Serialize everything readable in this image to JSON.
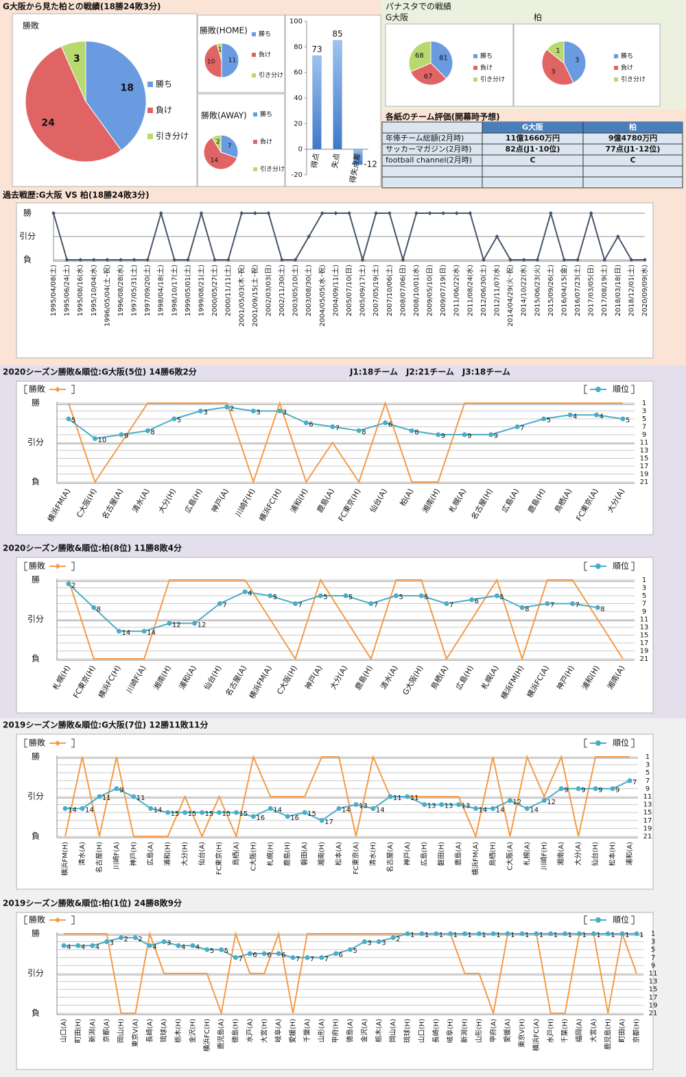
{
  "record_title": "G大阪から見た柏との戦績(18勝24敗3分)",
  "panasta_title": "パナスタでの戦績",
  "table": {
    "title": "各紙のチーム評価(開幕時予想)",
    "header": [
      "G大阪",
      "柏"
    ],
    "rows": [
      [
        "年俸チーム総額(2月時)",
        "11億1660万円",
        "9億4780万円"
      ],
      [
        "サッカーマガジン(2月時)",
        "82点(J1･10位)",
        "77点(J1･12位)"
      ],
      [
        "football channel(2月時)",
        "C",
        "C"
      ]
    ]
  },
  "chart_data": [
    {
      "type": "pie",
      "title": "勝敗",
      "categories": [
        "勝ち",
        "負け",
        "引き分け"
      ],
      "values": [
        18,
        24,
        3
      ],
      "colors": [
        "#6a9be0",
        "#e06464",
        "#b8d96e"
      ]
    },
    {
      "type": "pie",
      "title": "勝敗(HOME)",
      "categories": [
        "勝ち",
        "負け",
        "引き分け"
      ],
      "values": [
        11,
        10,
        1
      ],
      "colors": [
        "#6a9be0",
        "#e06464",
        "#b8d96e"
      ]
    },
    {
      "type": "pie",
      "title": "勝敗(AWAY)",
      "categories": [
        "勝ち",
        "負け",
        "引き分け"
      ],
      "values": [
        7,
        14,
        2
      ],
      "colors": [
        "#6a9be0",
        "#e06464",
        "#b8d96e"
      ]
    },
    {
      "type": "bar",
      "categories": [
        "得点",
        "失点",
        "得失点差"
      ],
      "values": [
        73,
        85,
        -12
      ],
      "color": "#5b8fd6",
      "ylim": [
        -20,
        100
      ],
      "yticks": [
        -20,
        0,
        20,
        40,
        60,
        80,
        100
      ]
    },
    {
      "type": "pie",
      "title": "G大阪",
      "categories": [
        "勝ち",
        "負け",
        "引き分け"
      ],
      "values": [
        81,
        67,
        68
      ],
      "colors": [
        "#6a9be0",
        "#e06464",
        "#b8d96e"
      ]
    },
    {
      "type": "pie",
      "title": "柏",
      "categories": [
        "勝ち",
        "負け",
        "引き分け"
      ],
      "values": [
        3,
        3,
        1
      ],
      "colors": [
        "#6a9be0",
        "#e06464",
        "#b8d96e"
      ]
    },
    {
      "type": "line",
      "title": "過去戦歴:G大阪 VS 柏(18勝24敗3分)",
      "categories": [
        "1995/04/08(土)",
        "1995/06/24(土)",
        "1995/08/16(水)",
        "1995/10/04(水)",
        "1996/05/04(土･祝)",
        "1996/08/28(水)",
        "1997/05/31(土)",
        "1997/09/20(土)",
        "1998/04/18(土)",
        "1998/10/17(土)",
        "1999/05/01(土)",
        "1999/08/21(土)",
        "2000/05/27(土)",
        "2000/11/11(土)",
        "2001/05/03(木･祝)",
        "2001/09/15(土･祝)",
        "2002/03/03(日)",
        "2002/11/30(土)",
        "2003/05/10(土)",
        "2003/08/30(土)",
        "2004/05/05(水･祝)",
        "2004/09/11(土)",
        "2005/07/10(日)",
        "2005/09/17(土)",
        "2007/05/19(土)",
        "2007/10/06(土)",
        "2008/07/06(日)",
        "2008/10/01(水)",
        "2009/05/10(日)",
        "2009/07/19(日)",
        "2011/06/22(水)",
        "2011/08/24(水)",
        "2012/06/30(土)",
        "2012/11/07(水)",
        "2014/04/29(火･祝)",
        "2014/10/22(水)",
        "2015/06/23(火)",
        "2015/09/26(土)",
        "2016/04/15(金)",
        "2016/07/23(土)",
        "2017/03/05(日)",
        "2017/08/19(土)",
        "2018/03/18(日)",
        "2018/12/01(土)",
        "2020/09/09(水)"
      ],
      "values": [
        2,
        0,
        0,
        0,
        0,
        0,
        0,
        0,
        2,
        0,
        0,
        2,
        0,
        0,
        2,
        2,
        2,
        0,
        0,
        1,
        2,
        2,
        2,
        0,
        2,
        2,
        0,
        2,
        2,
        2,
        2,
        2,
        0,
        1,
        0,
        0,
        0,
        2,
        0,
        0,
        2,
        0,
        1,
        0,
        0
      ],
      "color": "#44546a",
      "marker": "diamond",
      "ylim": [
        0,
        2
      ],
      "yticks": [
        {
          "value": 2,
          "label": "勝"
        },
        {
          "value": 1,
          "label": "引分"
        },
        {
          "value": 0,
          "label": "負"
        }
      ],
      "grid": true
    },
    {
      "type": "line",
      "title": "2020シーズン勝敗&順位:G大阪(5位) 14勝6敗2分",
      "annotation": "J1:18チーム　J2:21チーム　J3:18チーム",
      "categories": [
        "横浜FM(A)",
        "C大阪(H)",
        "名古屋(A)",
        "清水(A)",
        "大分(H)",
        "広島(H)",
        "神戸(A)",
        "川崎F(H)",
        "横浜FC(H)",
        "浦和(H)",
        "鹿島(A)",
        "FC東京(H)",
        "仙台(A)",
        "柏(A)",
        "湘南(H)",
        "札幌(A)",
        "名古屋(H)",
        "広島(A)",
        "鹿島(H)",
        "鳥栖(A)",
        "FC東京(A)",
        "大分(A)"
      ],
      "series": [
        {
          "name": "勝敗",
          "color": "#f59a45",
          "marker": "diamond",
          "values": [
            2,
            0,
            1,
            2,
            2,
            2,
            2,
            0,
            2,
            0,
            1,
            0,
            2,
            0,
            0,
            2,
            2,
            2,
            2,
            2,
            2,
            2
          ]
        },
        {
          "name": "順位",
          "color": "#4bacc6",
          "marker": "circle",
          "axis": "y2",
          "data_labels": true,
          "values": [
            5,
            10,
            9,
            8,
            5,
            3,
            2,
            3,
            3,
            6,
            7,
            8,
            6,
            8,
            9,
            9,
            9,
            7,
            5,
            4,
            4,
            5
          ]
        }
      ],
      "ylim": [
        0,
        2
      ],
      "yticks": [
        {
          "value": 2,
          "label": "勝"
        },
        {
          "value": 1,
          "label": "引分"
        },
        {
          "value": 0,
          "label": "負"
        }
      ],
      "y2lim": [
        1,
        21
      ],
      "y2_reversed": true,
      "y2ticks": [
        1,
        3,
        5,
        7,
        9,
        11,
        13,
        15,
        17,
        19,
        21
      ],
      "grid": true,
      "legend": "top"
    },
    {
      "type": "line",
      "title": "2020シーズン勝敗&順位:柏(8位) 11勝8敗4分",
      "categories": [
        "札幌(H)",
        "FC東京(H)",
        "横浜FC(H)",
        "川崎F(A)",
        "湘南(H)",
        "浦和(A)",
        "仙台(H)",
        "名古屋(A)",
        "横浜FM(A)",
        "C大阪(H)",
        "神戸(A)",
        "大分(A)",
        "鹿島(H)",
        "清水(A)",
        "G大阪(H)",
        "鳥栖(A)",
        "広島(H)",
        "札幌(A)",
        "横浜FM(H)",
        "横浜FC(A)",
        "神戸(H)",
        "浦和(H)",
        "湘南(A)"
      ],
      "series": [
        {
          "name": "勝敗",
          "color": "#f59a45",
          "marker": "diamond",
          "values": [
            2,
            0,
            0,
            0,
            2,
            2,
            2,
            2,
            1,
            0,
            2,
            1,
            0,
            2,
            2,
            0,
            1,
            2,
            0,
            2,
            2,
            1,
            0
          ]
        },
        {
          "name": "順位",
          "color": "#4bacc6",
          "marker": "circle",
          "axis": "y2",
          "data_labels": true,
          "values": [
            2,
            8,
            14,
            14,
            12,
            12,
            7,
            4,
            5,
            7,
            5,
            5,
            7,
            5,
            5,
            7,
            6,
            5,
            8,
            7,
            7,
            8,
            null
          ]
        }
      ],
      "ylim": [
        0,
        2
      ],
      "yticks": [
        {
          "value": 2,
          "label": "勝"
        },
        {
          "value": 1,
          "label": "引分"
        },
        {
          "value": 0,
          "label": "負"
        }
      ],
      "y2lim": [
        1,
        21
      ],
      "y2_reversed": true,
      "y2ticks": [
        1,
        3,
        5,
        7,
        9,
        11,
        13,
        15,
        17,
        19,
        21
      ],
      "grid": true,
      "legend": "top"
    },
    {
      "type": "line",
      "title": "2019シーズン勝敗&順位:G大阪(7位) 12勝11敗11分",
      "categories": [
        "横浜FM(H)",
        "清水(A)",
        "名古屋(H)",
        "川崎F(A)",
        "神戸(H)",
        "広島(A)",
        "浦和(H)",
        "大分(H)",
        "仙台(A)",
        "FC東京(H)",
        "鳥栖(A)",
        "C大阪(H)",
        "札幌(H)",
        "鹿島(H)",
        "磐田(A)",
        "湘南(H)",
        "松本(A)",
        "FC東京(A)",
        "清水(H)",
        "名古屋(A)",
        "神戸(A)",
        "広島(H)",
        "磐田(H)",
        "鹿島(A)",
        "横浜FM(A)",
        "鳥栖(H)",
        "C大阪(A)",
        "札幌(A)",
        "川崎F(H)",
        "湘南(A)",
        "大分(A)",
        "仙台(H)",
        "松本(H)",
        "浦和(A)"
      ],
      "series": [
        {
          "name": "勝敗",
          "color": "#f59a45",
          "marker": "diamond",
          "values": [
            0,
            2,
            0,
            2,
            0,
            0,
            0,
            1,
            0,
            1,
            0,
            2,
            1,
            1,
            1,
            2,
            2,
            0,
            2,
            1,
            1,
            1,
            1,
            1,
            0,
            2,
            0,
            2,
            1,
            2,
            0,
            2,
            2,
            2
          ]
        },
        {
          "name": "順位",
          "color": "#4bacc6",
          "marker": "circle",
          "axis": "y2",
          "data_labels": true,
          "values": [
            14,
            14,
            11,
            9,
            11,
            14,
            15,
            15,
            15,
            15,
            15,
            16,
            14,
            16,
            15,
            17,
            14,
            13,
            14,
            11,
            11,
            13,
            13,
            13,
            14,
            14,
            12,
            14,
            12,
            9,
            9,
            9,
            9,
            7
          ]
        }
      ],
      "ylim": [
        0,
        2
      ],
      "yticks": [
        {
          "value": 2,
          "label": "勝"
        },
        {
          "value": 1,
          "label": "引分"
        },
        {
          "value": 0,
          "label": "負"
        }
      ],
      "y2lim": [
        1,
        21
      ],
      "y2_reversed": true,
      "y2ticks": [
        1,
        3,
        5,
        7,
        9,
        11,
        13,
        15,
        17,
        19,
        21
      ],
      "grid": true,
      "legend": "top"
    },
    {
      "type": "line",
      "title": "2019シーズン勝敗&順位:柏(1位) 24勝8敗9分",
      "categories": [
        "山口(A)",
        "町田(H)",
        "新潟(A)",
        "京都(A)",
        "岡山(H)",
        "東京V(A)",
        "長崎(A)",
        "琉球(A)",
        "栃木(H)",
        "金沢(H)",
        "横浜FC(H)",
        "鹿児島(A)",
        "徳島(H)",
        "水戸(A)",
        "大宮(H)",
        "岐阜(A)",
        "愛媛(H)",
        "千葉(A)",
        "山形(A)",
        "甲府(H)",
        "徳島(A)",
        "金沢(A)",
        "栃木(A)",
        "岡山(A)",
        "琉球(H)",
        "山口(H)",
        "長崎(H)",
        "岐阜(H)",
        "新潟(H)",
        "山形(H)",
        "甲府(A)",
        "愛媛(A)",
        "東京V(H)",
        "横浜FC(A)",
        "水戸(H)",
        "千葉(H)",
        "福岡(A)",
        "大宮(A)",
        "鹿児島(H)",
        "町田(A)",
        "京都(H)"
      ],
      "series": [
        {
          "name": "勝敗",
          "color": "#f59a45",
          "marker": "diamond",
          "values": [
            2,
            2,
            2,
            2,
            0,
            0,
            2,
            1,
            1,
            1,
            1,
            0,
            2,
            1,
            1,
            2,
            0,
            2,
            2,
            2,
            2,
            2,
            2,
            2,
            2,
            2,
            2,
            2,
            1,
            1,
            0,
            2,
            2,
            2,
            0,
            0,
            2,
            2,
            0,
            2,
            1
          ]
        },
        {
          "name": "順位",
          "color": "#4bacc6",
          "marker": "circle",
          "axis": "y2",
          "data_labels": true,
          "values": [
            4,
            4,
            4,
            3,
            2,
            2,
            4,
            3,
            4,
            4,
            5,
            5,
            7,
            6,
            6,
            6,
            7,
            7,
            7,
            6,
            5,
            3,
            3,
            2,
            1,
            1,
            1,
            1,
            1,
            1,
            1,
            1,
            1,
            1,
            1,
            1,
            1,
            1,
            1,
            1,
            1
          ]
        }
      ],
      "ylim": [
        0,
        2
      ],
      "yticks": [
        {
          "value": 2,
          "label": "勝"
        },
        {
          "value": 1,
          "label": "引分"
        },
        {
          "value": 0,
          "label": "負"
        }
      ],
      "y2lim": [
        1,
        21
      ],
      "y2_reversed": true,
      "y2ticks": [
        1,
        3,
        5,
        7,
        9,
        11,
        13,
        15,
        17,
        19,
        21
      ],
      "grid": true,
      "legend": "top"
    }
  ]
}
